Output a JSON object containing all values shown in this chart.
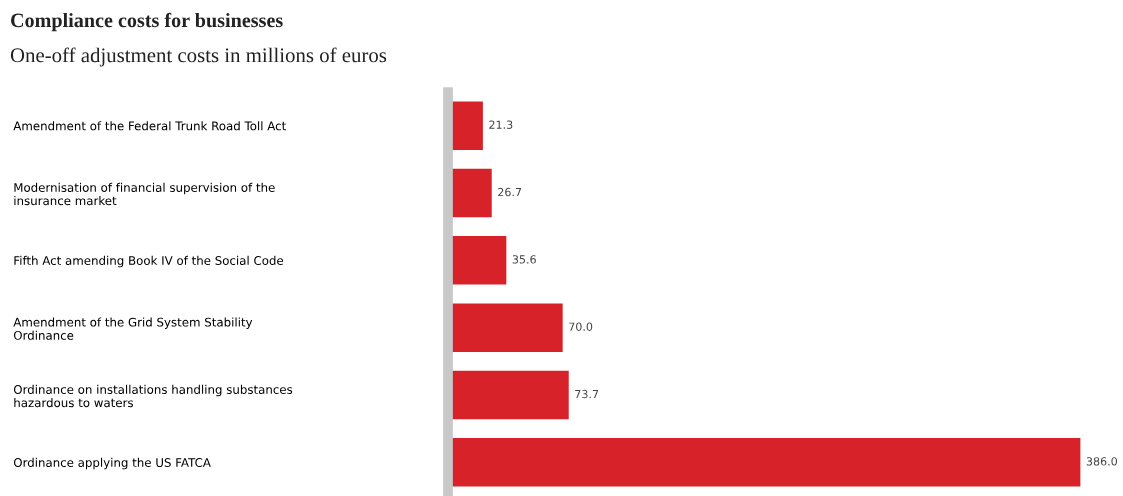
{
  "chart_data": {
    "type": "bar",
    "orientation": "horizontal",
    "title": "Compliance costs for businesses",
    "subtitle": "One-off adjustment costs in millions of euros",
    "categories": [
      "Amendment of the Federal Trunk Road Toll Act",
      "Modernisation of financial supervision of the\ninsurance market",
      "Fifth Act amending Book IV of the Social Code",
      "Amendment of the Grid System Stability\nOrdinance",
      "Ordinance on installations handling substances\nhazardous to waters",
      "Ordinance applying the US FATCA"
    ],
    "values": [
      21.3,
      26.7,
      35.6,
      70.0,
      73.7,
      386.0
    ],
    "value_labels": [
      "21.3",
      "26.7",
      "35.6",
      "70.0",
      "73.7",
      "386.0"
    ],
    "color": "#d8222a",
    "tick_labels": "y",
    "grid": false,
    "legend": false
  }
}
